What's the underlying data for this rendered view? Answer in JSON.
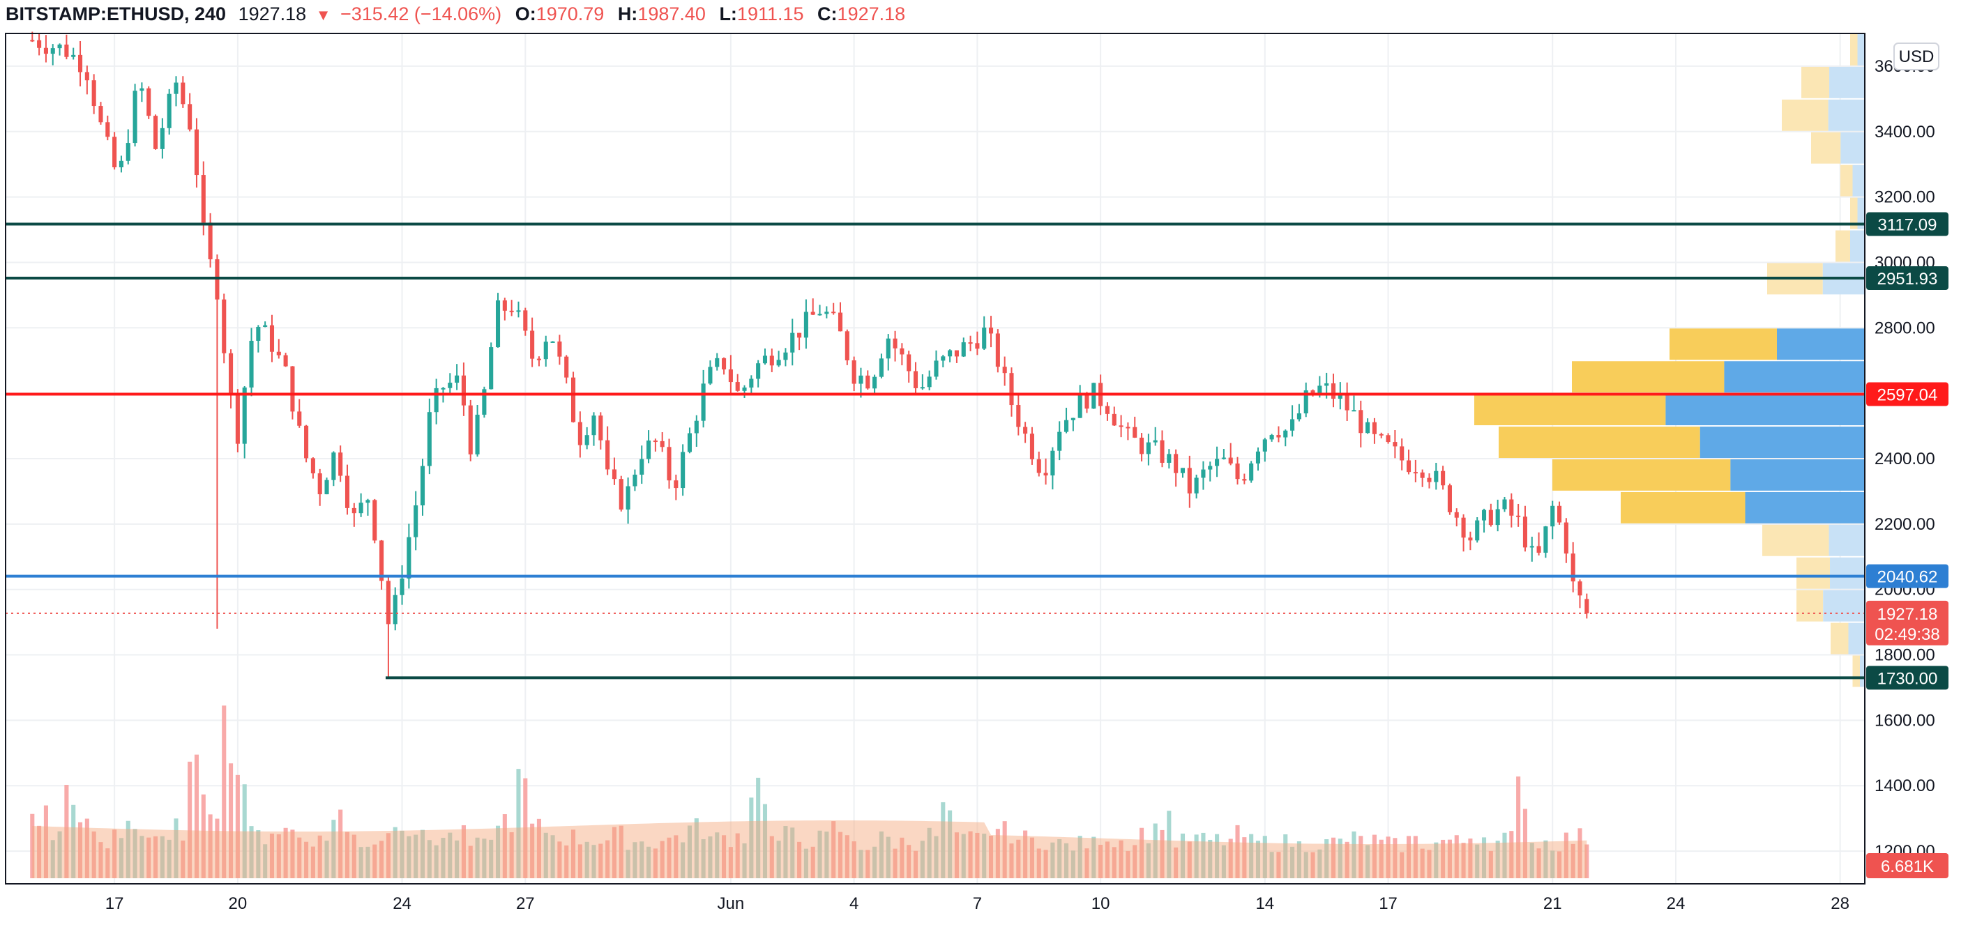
{
  "header": {
    "symbol": "BITSTAMP:ETHUSD, 240",
    "last": "1927.18",
    "change": "−315.42 (−14.06%)",
    "o_label": "O:",
    "o_value": "1970.79",
    "h_label": "H:",
    "h_value": "1987.40",
    "l_label": "L:",
    "l_value": "1911.15",
    "c_label": "C:",
    "c_value": "1927.18"
  },
  "axis": {
    "currency": "USD"
  },
  "colors": {
    "up": "#26a69a",
    "down": "#ef5350",
    "vol_up": "#9fd4cc",
    "vol_down": "#f7a1a0",
    "level_dark": "#0b4a45",
    "level_red": "#ff1a1a",
    "level_blue": "#2d7fd3",
    "vp_yellow": "#f8cd5a",
    "vp_blue": "#5fa9e7",
    "vp_yellow_light": "#fbe6b4",
    "vp_blue_light": "#c8e1f6",
    "volume_ma": "#f5a77a"
  },
  "chart_data": {
    "type": "candlestick",
    "title": "BITSTAMP:ETHUSD, 240",
    "ylim": [
      1100,
      3700
    ],
    "y_ticks": [
      "1200.00",
      "1400.00",
      "1600.00",
      "1800.00",
      "2000.00",
      "2200.00",
      "2400.00",
      "2600.00",
      "2800.00",
      "3000.00",
      "3200.00",
      "3400.00",
      "3600.00"
    ],
    "x_ticks": [
      {
        "label": "17",
        "day": 17
      },
      {
        "label": "20",
        "day": 20
      },
      {
        "label": "24",
        "day": 24
      },
      {
        "label": "27",
        "day": 27
      },
      {
        "label": "Jun",
        "day": 32
      },
      {
        "label": "4",
        "day": 35
      },
      {
        "label": "7",
        "day": 38
      },
      {
        "label": "10",
        "day": 41
      },
      {
        "label": "14",
        "day": 45
      },
      {
        "label": "17",
        "day": 48
      },
      {
        "label": "21",
        "day": 52
      },
      {
        "label": "24",
        "day": 55
      },
      {
        "label": "28",
        "day": 59
      }
    ],
    "x_range_days": [
      14.35,
      59.6
    ],
    "close_path": [
      [
        15.0,
        3680
      ],
      [
        15.8,
        3650
      ],
      [
        16.3,
        3600
      ],
      [
        16.7,
        3400
      ],
      [
        17.1,
        3250
      ],
      [
        17.6,
        3560
      ],
      [
        18.0,
        3350
      ],
      [
        18.5,
        3550
      ],
      [
        18.9,
        3400
      ],
      [
        19.2,
        3050
      ],
      [
        19.5,
        2920
      ],
      [
        19.8,
        2600
      ],
      [
        20.0,
        2480
      ],
      [
        20.4,
        2820
      ],
      [
        20.8,
        2760
      ],
      [
        21.2,
        2650
      ],
      [
        21.6,
        2420
      ],
      [
        22.0,
        2310
      ],
      [
        22.4,
        2430
      ],
      [
        22.8,
        2210
      ],
      [
        23.2,
        2290
      ],
      [
        23.5,
        2040
      ],
      [
        23.7,
        1870
      ],
      [
        24.0,
        2060
      ],
      [
        24.4,
        2300
      ],
      [
        24.7,
        2550
      ],
      [
        25.0,
        2620
      ],
      [
        25.4,
        2640
      ],
      [
        25.7,
        2420
      ],
      [
        26.0,
        2600
      ],
      [
        26.3,
        2850
      ],
      [
        26.7,
        2870
      ],
      [
        27.2,
        2700
      ],
      [
        27.6,
        2800
      ],
      [
        28.0,
        2620
      ],
      [
        28.3,
        2460
      ],
      [
        28.7,
        2550
      ],
      [
        29.0,
        2340
      ],
      [
        29.4,
        2260
      ],
      [
        29.8,
        2420
      ],
      [
        30.2,
        2450
      ],
      [
        30.6,
        2310
      ],
      [
        31.0,
        2470
      ],
      [
        31.4,
        2640
      ],
      [
        31.8,
        2700
      ],
      [
        32.2,
        2590
      ],
      [
        32.6,
        2680
      ],
      [
        33.0,
        2720
      ],
      [
        33.4,
        2760
      ],
      [
        33.8,
        2810
      ],
      [
        34.2,
        2860
      ],
      [
        34.6,
        2800
      ],
      [
        35.0,
        2660
      ],
      [
        35.4,
        2640
      ],
      [
        35.8,
        2780
      ],
      [
        36.2,
        2700
      ],
      [
        36.6,
        2610
      ],
      [
        37.0,
        2680
      ],
      [
        37.4,
        2720
      ],
      [
        37.8,
        2750
      ],
      [
        38.2,
        2790
      ],
      [
        38.5,
        2700
      ],
      [
        38.8,
        2580
      ],
      [
        39.2,
        2460
      ],
      [
        39.6,
        2360
      ],
      [
        40.0,
        2500
      ],
      [
        40.4,
        2560
      ],
      [
        40.8,
        2600
      ],
      [
        41.2,
        2560
      ],
      [
        41.6,
        2470
      ],
      [
        42.0,
        2440
      ],
      [
        42.4,
        2420
      ],
      [
        42.8,
        2380
      ],
      [
        43.2,
        2300
      ],
      [
        43.6,
        2370
      ],
      [
        44.0,
        2390
      ],
      [
        44.4,
        2330
      ],
      [
        44.8,
        2440
      ],
      [
        45.2,
        2500
      ],
      [
        45.6,
        2480
      ],
      [
        46.0,
        2580
      ],
      [
        46.4,
        2620
      ],
      [
        46.8,
        2580
      ],
      [
        47.2,
        2530
      ],
      [
        47.6,
        2460
      ],
      [
        48.0,
        2430
      ],
      [
        48.4,
        2390
      ],
      [
        48.8,
        2380
      ],
      [
        49.2,
        2330
      ],
      [
        49.6,
        2240
      ],
      [
        50.0,
        2160
      ],
      [
        50.4,
        2220
      ],
      [
        50.8,
        2250
      ],
      [
        51.2,
        2200
      ],
      [
        51.6,
        2070
      ],
      [
        52.0,
        2250
      ],
      [
        52.3,
        2160
      ],
      [
        52.5,
        2010
      ],
      [
        52.7,
        1960
      ],
      [
        52.9,
        1927
      ]
    ],
    "volume_levels": [
      380,
      260,
      560,
      300,
      190,
      280,
      360,
      260,
      210,
      300,
      610,
      480,
      920,
      640,
      260,
      300,
      290,
      250,
      230,
      410,
      260,
      220,
      260,
      380,
      300,
      240,
      250,
      260,
      200,
      290,
      360,
      560,
      300,
      260,
      250,
      240,
      230,
      260,
      230,
      220,
      230,
      260,
      300,
      240,
      250,
      260,
      560,
      230,
      260,
      230,
      240,
      300,
      230,
      200,
      240,
      220,
      220,
      260,
      400,
      230,
      240,
      300,
      280,
      240,
      230,
      210,
      200,
      210,
      260,
      230,
      220,
      280,
      380,
      220,
      240,
      230,
      230,
      260,
      220,
      210,
      220,
      200,
      210,
      220,
      240,
      230,
      210,
      200,
      230,
      210,
      230,
      220,
      260,
      220,
      240,
      540,
      220,
      210,
      240,
      250
    ],
    "levels": [
      {
        "label": "3117.09",
        "price": 3117.09,
        "style": "dark",
        "start_day": 14.35
      },
      {
        "label": "2951.93",
        "price": 2951.93,
        "style": "dark",
        "start_day": 14.35
      },
      {
        "label": "2597.04",
        "price": 2597.04,
        "style": "red",
        "start_day": 14.35
      },
      {
        "label": "2040.62",
        "price": 2040.62,
        "style": "blue",
        "start_day": 14.35
      },
      {
        "label": "1730.00",
        "price": 1730.0,
        "style": "dark",
        "start_day": 23.6
      }
    ],
    "current_price": {
      "label": "1927.18",
      "price": 1927.18,
      "countdown": "02:49:38"
    },
    "volume_badge": "6.681K",
    "volume_profile": [
      {
        "low": 2700,
        "high": 2800,
        "total": 0.4,
        "up_share": 0.45,
        "strong": true
      },
      {
        "low": 2600,
        "high": 2700,
        "total": 0.6,
        "up_share": 0.48,
        "strong": true
      },
      {
        "low": 2500,
        "high": 2600,
        "total": 0.8,
        "up_share": 0.51,
        "strong": true
      },
      {
        "low": 2400,
        "high": 2500,
        "total": 0.75,
        "up_share": 0.45,
        "strong": true
      },
      {
        "low": 2300,
        "high": 2400,
        "total": 0.64,
        "up_share": 0.43,
        "strong": true
      },
      {
        "low": 2200,
        "high": 2300,
        "total": 0.5,
        "up_share": 0.49,
        "strong": true
      },
      {
        "low": 2100,
        "high": 2200,
        "total": 0.21,
        "up_share": 0.35,
        "strong": false
      },
      {
        "low": 2000,
        "high": 2100,
        "total": 0.14,
        "up_share": 0.51,
        "strong": false
      },
      {
        "low": 1900,
        "high": 2000,
        "total": 0.14,
        "up_share": 0.61,
        "strong": false
      },
      {
        "low": 1800,
        "high": 1900,
        "total": 0.07,
        "up_share": 0.48,
        "strong": false
      },
      {
        "low": 1700,
        "high": 1800,
        "total": 0.025,
        "up_share": 0.4,
        "strong": false
      },
      {
        "low": 3000,
        "high": 3100,
        "total": 0.06,
        "up_share": 0.5,
        "strong": false
      },
      {
        "low": 2900,
        "high": 3000,
        "total": 0.2,
        "up_share": 0.43,
        "strong": false
      },
      {
        "low": 3100,
        "high": 3200,
        "total": 0.03,
        "up_share": 0.5,
        "strong": false
      },
      {
        "low": 3200,
        "high": 3300,
        "total": 0.05,
        "up_share": 0.5,
        "strong": false
      },
      {
        "low": 3300,
        "high": 3400,
        "total": 0.11,
        "up_share": 0.45,
        "strong": false
      },
      {
        "low": 3400,
        "high": 3500,
        "total": 0.17,
        "up_share": 0.44,
        "strong": false
      },
      {
        "low": 3500,
        "high": 3600,
        "total": 0.13,
        "up_share": 0.56,
        "strong": false
      },
      {
        "low": 3600,
        "high": 3700,
        "total": 0.03,
        "up_share": 0.5,
        "strong": false
      }
    ]
  }
}
